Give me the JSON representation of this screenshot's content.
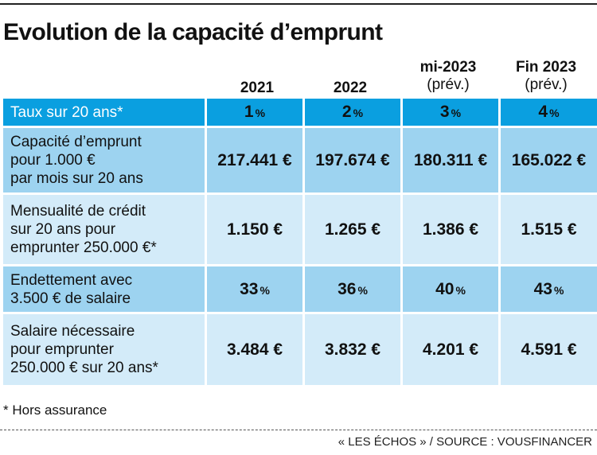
{
  "title": "Evolution de la capacité d’emprunt",
  "columns": [
    {
      "year": "2021",
      "sub": ""
    },
    {
      "year": "2022",
      "sub": ""
    },
    {
      "year": "mi-2023",
      "sub": "(prév.)"
    },
    {
      "year": "Fin 2023",
      "sub": "(prév.)"
    }
  ],
  "rate_row": {
    "label": "Taux sur 20 ans*",
    "values": [
      {
        "num": "1",
        "unit": "%"
      },
      {
        "num": "2",
        "unit": "%"
      },
      {
        "num": "3",
        "unit": "%"
      },
      {
        "num": "4",
        "unit": "%"
      }
    ]
  },
  "rows": [
    {
      "label_lines": [
        "Capacité d’emprunt",
        "pour 1.000 €",
        "par mois sur 20 ans"
      ],
      "values": [
        {
          "num": "217.441 €",
          "unit": ""
        },
        {
          "num": "197.674 €",
          "unit": ""
        },
        {
          "num": "180.311 €",
          "unit": ""
        },
        {
          "num": "165.022 €",
          "unit": ""
        }
      ]
    },
    {
      "label_lines": [
        "Mensualité de crédit",
        "sur 20 ans pour",
        "emprunter 250.000 €*"
      ],
      "values": [
        {
          "num": "1.150 €",
          "unit": ""
        },
        {
          "num": "1.265 €",
          "unit": ""
        },
        {
          "num": "1.386 €",
          "unit": ""
        },
        {
          "num": "1.515 €",
          "unit": ""
        }
      ]
    },
    {
      "label_lines": [
        "Endettement avec",
        "3.500 € de salaire"
      ],
      "values": [
        {
          "num": "33",
          "unit": "%"
        },
        {
          "num": "36",
          "unit": "%"
        },
        {
          "num": "40",
          "unit": "%"
        },
        {
          "num": "43",
          "unit": "%"
        }
      ]
    },
    {
      "label_lines": [
        "Salaire nécessaire",
        "pour emprunter",
        "250.000 € sur 20 ans*"
      ],
      "values": [
        {
          "num": "3.484 €",
          "unit": ""
        },
        {
          "num": "3.832 €",
          "unit": ""
        },
        {
          "num": "4.201 €",
          "unit": ""
        },
        {
          "num": "4.591 €",
          "unit": ""
        }
      ]
    }
  ],
  "footnote": "* Hors assurance",
  "source": "« LES ÉCHOS » / SOURCE : VOUSFINANCER",
  "colors": {
    "rate_row": "#0a9fe0",
    "dark_row": "#9dd3f0",
    "light_row": "#d3ebf9"
  }
}
